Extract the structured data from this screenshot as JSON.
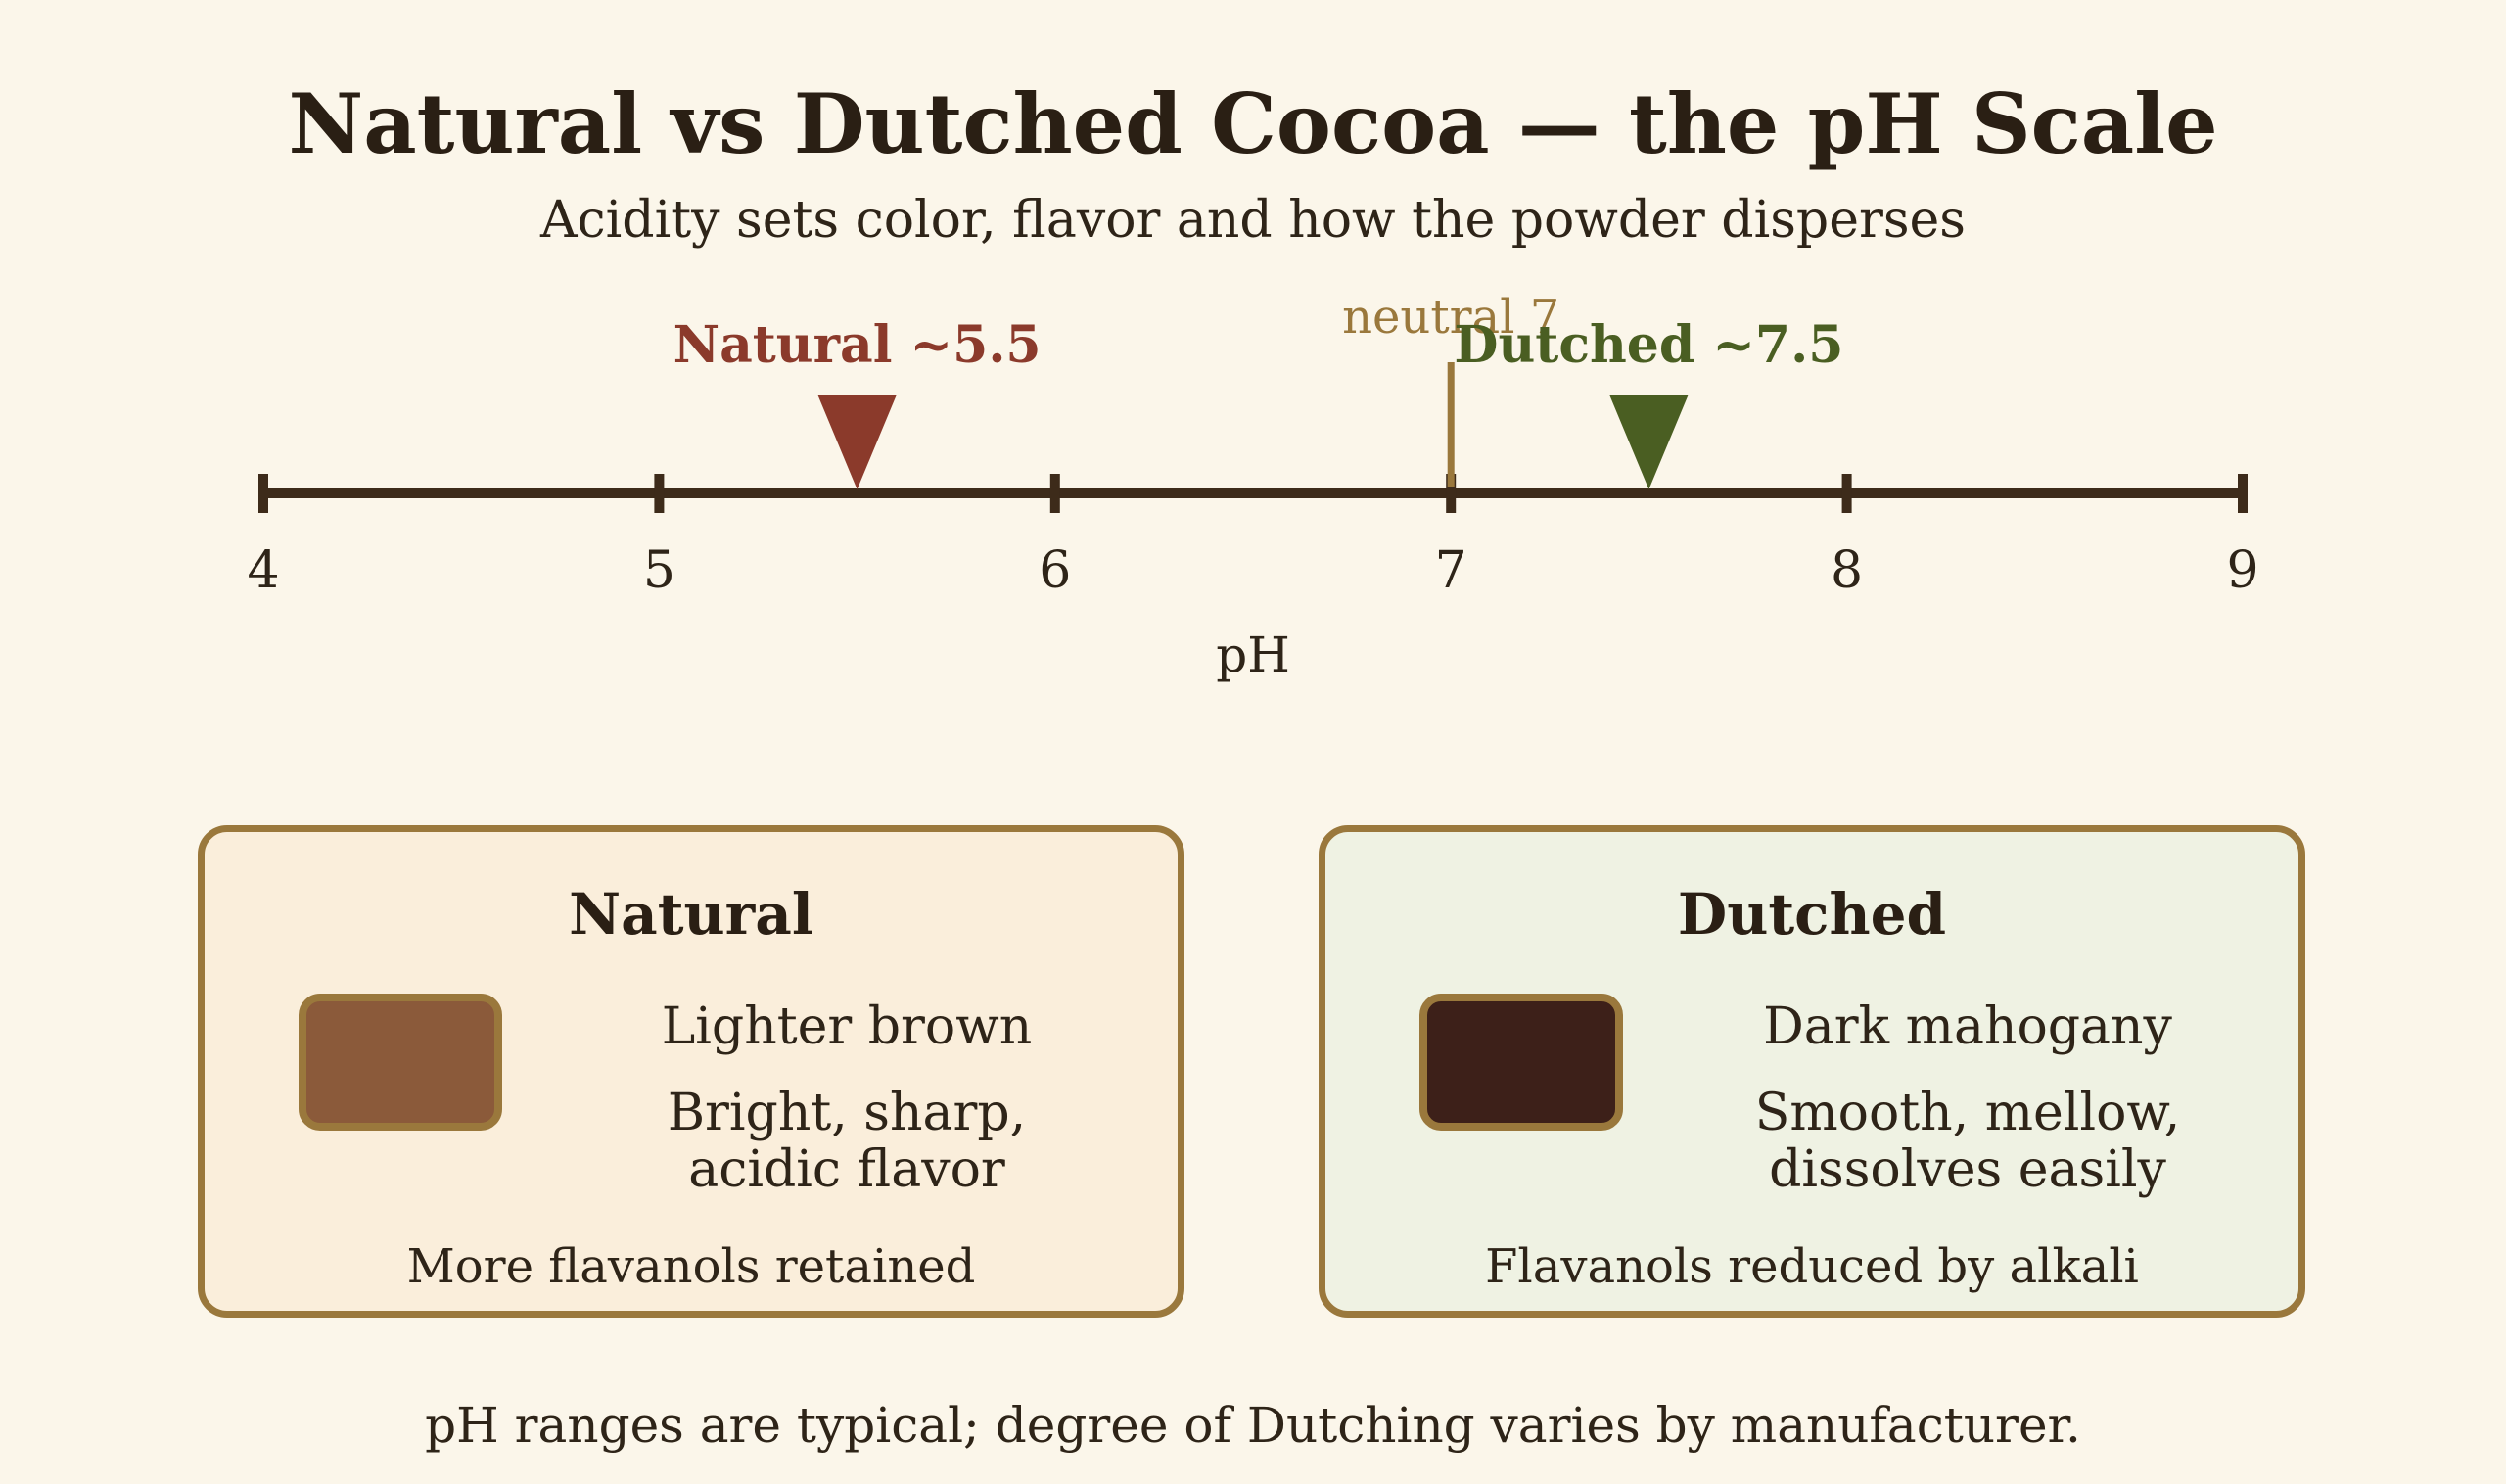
{
  "title": "Natural vs Dutched Cocoa — the pH Scale",
  "subtitle": "Acidity sets color, flavor and how the powder disperses",
  "scale": {
    "axis_label": "pH",
    "min": 4,
    "max": 9,
    "ticks": [
      "4",
      "5",
      "6",
      "7",
      "8",
      "9"
    ],
    "neutral": {
      "label": "neutral 7",
      "value": 7,
      "color": "#9a783c"
    },
    "markers": [
      {
        "label": "Natural ~5.5",
        "value": 5.5,
        "color": "#8b3a2b"
      },
      {
        "label": "Dutched ~7.5",
        "value": 7.5,
        "color": "#4a5e22"
      }
    ],
    "line_color": "#3d2b1a"
  },
  "cards": {
    "natural": {
      "title": "Natural",
      "swatch_color": "#8b5a3a",
      "color_text": "Lighter brown",
      "flavor_text": "Bright, sharp,\nacidic flavor",
      "note": "More flavanols retained"
    },
    "dutched": {
      "title": "Dutched",
      "swatch_color": "#3d2019",
      "color_text": "Dark mahogany",
      "flavor_text": "Smooth, mellow,\ndissolves easily",
      "note": "Flavanols reduced by alkali"
    }
  },
  "footnote": "pH ranges are typical; degree of Dutching varies by manufacturer."
}
